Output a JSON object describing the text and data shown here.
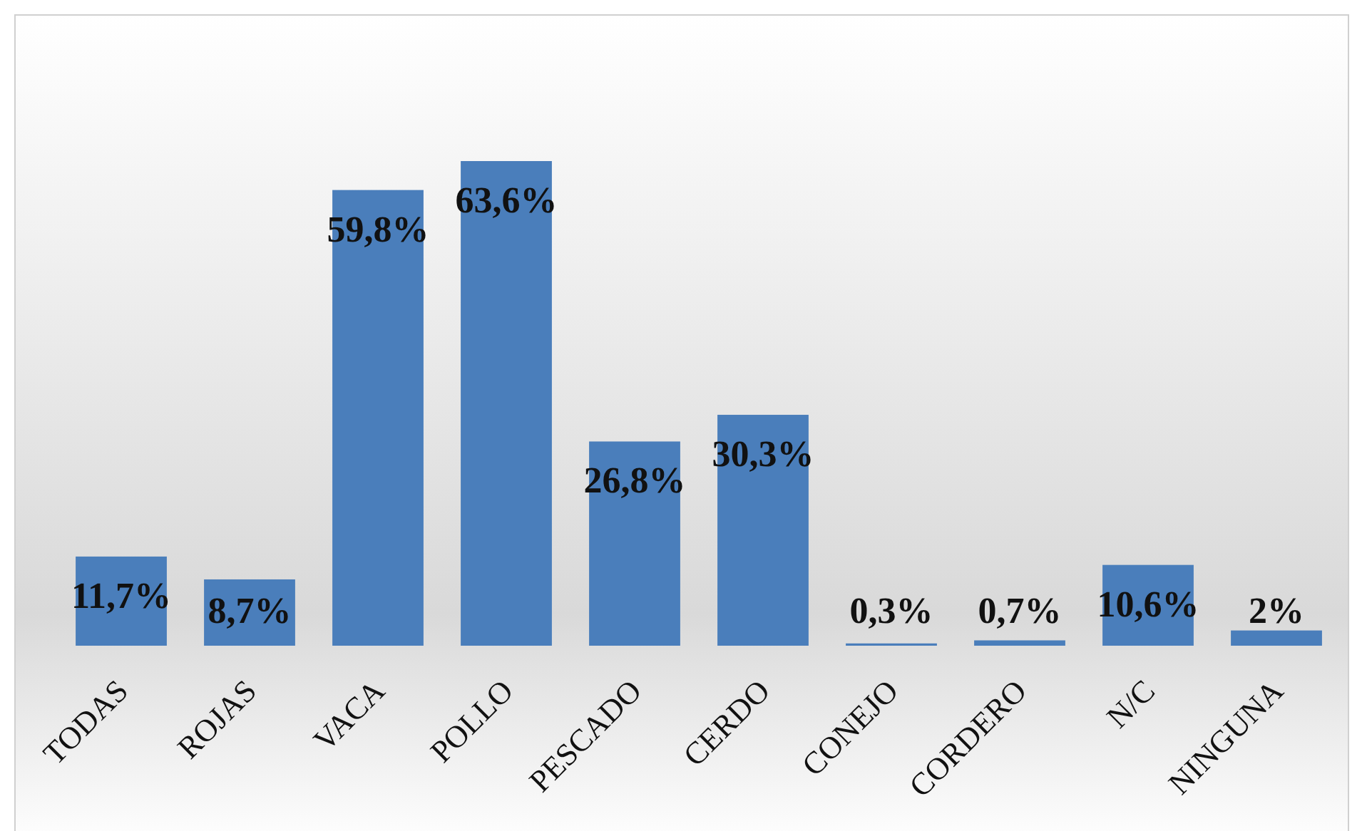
{
  "chart_data": {
    "type": "bar",
    "categories": [
      "TODAS",
      "ROJAS",
      "VACA",
      "POLLO",
      "PESCADO",
      "CERDO",
      "CONEJO",
      "CORDERO",
      "N/C",
      "NINGUNA"
    ],
    "values": [
      11.7,
      8.7,
      59.8,
      63.6,
      26.8,
      30.3,
      0.3,
      0.7,
      10.6,
      2
    ],
    "color": "#4a7ebb",
    "value_labels": [
      "11,7%",
      "8,7%",
      "59,8%",
      "63,6%",
      "26,8%",
      "30,3%",
      "0,3%",
      "0,7%",
      "10,6%",
      "2%"
    ]
  }
}
